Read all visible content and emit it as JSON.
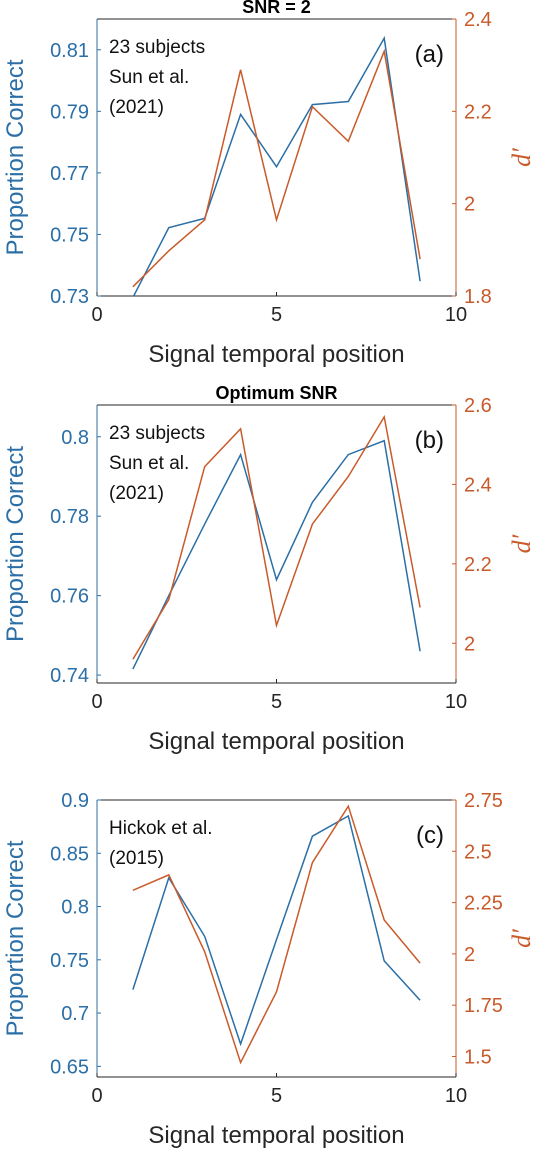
{
  "colors": {
    "blue": "#2b6fa6",
    "orange": "#c95a2a",
    "axis": "#262626"
  },
  "chart_data": [
    {
      "type": "line",
      "title": "SNR = 2",
      "panel_label": "(a)",
      "annotation": [
        "23 subjects",
        "Sun et al.",
        "(2021)"
      ],
      "xlabel": "Signal temporal position",
      "ylabel_left": "Proportion Correct",
      "ylabel_right": "d′",
      "xlim": [
        0,
        10
      ],
      "xticks": [
        0,
        5,
        10
      ],
      "ylim_left": [
        0.73,
        0.82
      ],
      "yticks_left": [
        "0.73",
        "0.75",
        "0.77",
        "0.79",
        "0.81"
      ],
      "ylim_right": [
        1.8,
        2.4
      ],
      "yticks_right": [
        "1.8",
        "2",
        "2.2",
        "2.4"
      ],
      "grid": false,
      "x": [
        1,
        2,
        3,
        4,
        5,
        6,
        7,
        8,
        9
      ],
      "series": [
        {
          "axis": "left",
          "values": [
            0.7295,
            0.7522,
            0.7552,
            0.789,
            0.772,
            0.7922,
            0.7932,
            0.8138,
            0.7348
          ]
        },
        {
          "axis": "right",
          "values": [
            1.82,
            1.898,
            1.965,
            2.29,
            1.965,
            2.21,
            2.135,
            2.33,
            1.88
          ]
        }
      ]
    },
    {
      "type": "line",
      "title": "Optimum SNR",
      "panel_label": "(b)",
      "annotation": [
        "23 subjects",
        "Sun et al.",
        "(2021)"
      ],
      "xlabel": "Signal temporal position",
      "ylabel_left": "Proportion Correct",
      "ylabel_right": "d′",
      "xlim": [
        0,
        10
      ],
      "xticks": [
        0,
        5,
        10
      ],
      "ylim_left": [
        0.738,
        0.808
      ],
      "yticks_left": [
        "0.74",
        "0.76",
        "0.78",
        "0.8"
      ],
      "ylim_right": [
        1.9,
        2.6
      ],
      "yticks_right": [
        "2",
        "2.2",
        "2.4",
        "2.6"
      ],
      "grid": false,
      "x": [
        1,
        2,
        3,
        4,
        5,
        6,
        7,
        8,
        9
      ],
      "series": [
        {
          "axis": "left",
          "values": [
            0.7415,
            0.76,
            0.778,
            0.7955,
            0.764,
            0.7835,
            0.7955,
            0.799,
            0.746
          ]
        },
        {
          "axis": "right",
          "values": [
            1.96,
            2.11,
            2.445,
            2.54,
            2.045,
            2.3,
            2.42,
            2.57,
            2.09
          ]
        }
      ]
    },
    {
      "type": "line",
      "title": "",
      "panel_label": "(c)",
      "annotation": [
        "Hickok et al.",
        "(2015)"
      ],
      "xlabel": "Signal temporal position",
      "ylabel_left": "Proportion Correct",
      "ylabel_right": "d′",
      "xlim": [
        0,
        10
      ],
      "xticks": [
        0,
        5,
        10
      ],
      "ylim_left": [
        0.64,
        0.9
      ],
      "yticks_left": [
        "0.65",
        "0.7",
        "0.75",
        "0.8",
        "0.85",
        "0.9"
      ],
      "ylim_right": [
        1.4,
        2.75
      ],
      "yticks_right": [
        "1.5",
        "1.75",
        "2",
        "2.25",
        "2.5",
        "2.75"
      ],
      "grid": false,
      "x": [
        1,
        2,
        3,
        4,
        5,
        6,
        7,
        8,
        9
      ],
      "series": [
        {
          "axis": "left",
          "values": [
            0.722,
            0.827,
            0.772,
            0.671,
            0.769,
            0.866,
            0.885,
            0.749,
            0.712
          ]
        },
        {
          "axis": "right",
          "values": [
            2.31,
            2.385,
            2.01,
            1.47,
            1.815,
            2.445,
            2.72,
            2.165,
            1.955
          ]
        }
      ]
    }
  ]
}
